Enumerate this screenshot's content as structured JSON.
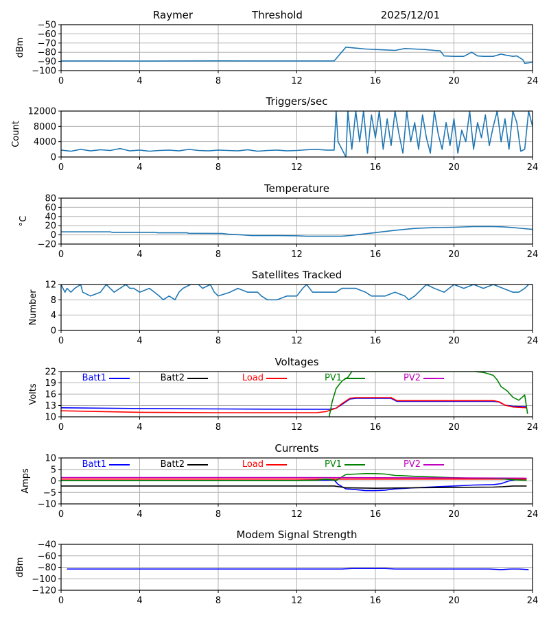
{
  "header": {
    "site": "Raymer",
    "mode": "Threshold",
    "date": "2025/12/01"
  },
  "colors": {
    "default_line": "#1f77b4",
    "batt1": "#0000ff",
    "batt2": "#000000",
    "load": "#ff0000",
    "pv1": "#008000",
    "pv2": "#bf00bf",
    "grid": "#b0b0b0"
  },
  "chart_data": [
    {
      "id": "threshold",
      "type": "line",
      "title": "",
      "xlabel": "",
      "ylabel": "dBm",
      "xlim": [
        0,
        24
      ],
      "ylim": [
        -100,
        -50
      ],
      "xticks": [
        "0",
        "4",
        "8",
        "12",
        "16",
        "20",
        "24"
      ],
      "yticks": [
        "−50",
        "−60",
        "−70",
        "−80",
        "−90",
        "−100"
      ],
      "ytick_values": [
        -50,
        -60,
        -70,
        -80,
        -90,
        -100
      ],
      "grid": true,
      "series": [
        {
          "name": "Threshold",
          "color": "#1f77b4",
          "x": [
            0,
            2,
            4,
            6,
            8,
            10,
            12,
            13.9,
            14.5,
            15,
            15.5,
            16,
            16.5,
            17,
            17.5,
            18,
            18.5,
            19,
            19.3,
            19.5,
            20,
            20.5,
            20.9,
            21.2,
            21.5,
            22,
            22.4,
            22.6,
            23,
            23.2,
            23.5,
            23.6,
            24
          ],
          "y": [
            -89.5,
            -89.5,
            -89.6,
            -89.5,
            -89.4,
            -89.5,
            -89.5,
            -89.5,
            -74.5,
            -75.5,
            -76.5,
            -77,
            -77.5,
            -78,
            -76,
            -76.5,
            -77,
            -78,
            -78.5,
            -84,
            -84.5,
            -84.5,
            -80,
            -84,
            -84.5,
            -84.5,
            -82,
            -83,
            -84.5,
            -84,
            -88,
            -92,
            -91
          ]
        }
      ]
    },
    {
      "id": "triggers",
      "type": "line",
      "title": "Triggers/sec",
      "xlabel": "",
      "ylabel": "Count",
      "xlim": [
        0,
        24
      ],
      "ylim": [
        0,
        12000
      ],
      "xticks": [
        "0",
        "4",
        "8",
        "12",
        "16",
        "20",
        "24"
      ],
      "yticks": [
        "12000",
        "8000",
        "4000",
        "0"
      ],
      "ytick_values": [
        12000,
        8000,
        4000,
        0
      ],
      "grid": true,
      "series": [
        {
          "name": "Triggers/sec",
          "color": "#1f77b4",
          "x": [
            0,
            0.5,
            1,
            1.5,
            2,
            2.5,
            3,
            3.5,
            4,
            4.5,
            5,
            5.5,
            6,
            6.5,
            7,
            7.5,
            8,
            8.5,
            9,
            9.5,
            10,
            10.5,
            11,
            11.5,
            12,
            12.5,
            13,
            13.5,
            13.9,
            14.0,
            14.1,
            14.5,
            14.6,
            14.8,
            15.0,
            15.2,
            15.4,
            15.6,
            15.8,
            16.0,
            16.2,
            16.4,
            16.6,
            16.8,
            17.0,
            17.2,
            17.4,
            17.6,
            17.8,
            18.0,
            18.2,
            18.4,
            18.6,
            18.8,
            19.0,
            19.2,
            19.4,
            19.6,
            19.8,
            20.0,
            20.2,
            20.4,
            20.6,
            20.8,
            21.0,
            21.2,
            21.4,
            21.6,
            21.8,
            22.0,
            22.2,
            22.4,
            22.6,
            22.8,
            23.0,
            23.2,
            23.4,
            23.6,
            23.8,
            24.0
          ],
          "y": [
            1800,
            1500,
            2000,
            1600,
            1900,
            1700,
            2200,
            1600,
            1800,
            1500,
            1700,
            1800,
            1600,
            2000,
            1700,
            1600,
            1800,
            1700,
            1600,
            1900,
            1500,
            1700,
            1800,
            1600,
            1700,
            1900,
            2000,
            1800,
            1800,
            12000,
            4000,
            0,
            12000,
            2000,
            12000,
            4000,
            12000,
            1000,
            11000,
            5000,
            12000,
            2000,
            10000,
            3000,
            12000,
            6000,
            1000,
            12000,
            4000,
            9000,
            2000,
            11000,
            5000,
            1000,
            12000,
            6000,
            2000,
            9000,
            3000,
            10000,
            1000,
            7000,
            4000,
            12000,
            2000,
            9000,
            5000,
            11000,
            3000,
            8000,
            12000,
            4000,
            10000,
            2000,
            12000,
            9000,
            1500,
            2000,
            12000,
            8000
          ]
        }
      ]
    },
    {
      "id": "temperature",
      "type": "line",
      "title": "Temperature",
      "xlabel": "",
      "ylabel": "°C",
      "xlim": [
        0,
        24
      ],
      "ylim": [
        -20,
        80
      ],
      "xticks": [
        "0",
        "4",
        "8",
        "12",
        "16",
        "20",
        "24"
      ],
      "yticks": [
        "80",
        "60",
        "40",
        "20",
        "0",
        "−20"
      ],
      "ytick_values": [
        80,
        60,
        40,
        20,
        0,
        -20
      ],
      "grid": true,
      "series": [
        {
          "name": "Temperature",
          "color": "#1f77b4",
          "x": [
            0,
            2.5,
            2.6,
            4.8,
            4.9,
            6.4,
            6.5,
            8.2,
            8.5,
            9.2,
            9.7,
            11,
            12,
            12.5,
            13.5,
            14.3,
            15,
            16,
            17,
            18,
            19,
            20,
            21,
            22,
            22.5,
            23,
            24
          ],
          "y": [
            6.5,
            6.5,
            5.5,
            5.5,
            4.5,
            4.5,
            3.5,
            3,
            1.5,
            0,
            -1.5,
            -1.5,
            -2,
            -3,
            -3,
            -3,
            0,
            5,
            10,
            14,
            16,
            16.5,
            18,
            18,
            17.5,
            16,
            12
          ]
        }
      ]
    },
    {
      "id": "satellites",
      "type": "line",
      "title": "Satellites Tracked",
      "xlabel": "",
      "ylabel": "Number",
      "xlim": [
        0,
        24
      ],
      "ylim": [
        0,
        12
      ],
      "xticks": [
        "0",
        "4",
        "8",
        "12",
        "16",
        "20",
        "24"
      ],
      "yticks": [
        "12",
        "8",
        "4",
        "0"
      ],
      "ytick_values": [
        12,
        8,
        4,
        0
      ],
      "grid": true,
      "series": [
        {
          "name": "Satellites",
          "color": "#1f77b4",
          "x": [
            0,
            0.2,
            0.3,
            0.5,
            0.7,
            1.0,
            1.1,
            1.5,
            2.0,
            2.3,
            2.7,
            3.0,
            3.3,
            3.5,
            3.7,
            4.0,
            4.5,
            5.0,
            5.2,
            5.5,
            5.8,
            6.0,
            6.2,
            6.6,
            7.0,
            7.2,
            7.6,
            7.8,
            8.0,
            8.6,
            9.0,
            9.5,
            10.0,
            10.2,
            10.5,
            11.0,
            11.5,
            12.0,
            12.3,
            12.5,
            12.8,
            13.5,
            14.0,
            14.3,
            15.0,
            15.5,
            15.8,
            16.5,
            17.0,
            17.5,
            17.7,
            18.0,
            18.4,
            18.6,
            19.0,
            19.5,
            20.0,
            20.5,
            21.0,
            21.5,
            22.0,
            22.5,
            23.0,
            23.3,
            23.6,
            23.8,
            24.0
          ],
          "y": [
            12,
            10,
            11,
            10,
            11,
            12,
            10,
            9,
            10,
            12,
            10,
            11,
            12,
            11,
            11,
            10,
            11,
            9,
            8,
            9,
            8,
            10,
            11,
            12,
            12,
            11,
            12,
            10,
            9,
            10,
            11,
            10,
            10,
            9,
            8,
            8,
            9,
            9,
            11,
            12,
            10,
            10,
            10,
            11,
            11,
            10,
            9,
            9,
            10,
            9,
            8,
            9,
            11,
            12,
            11,
            10,
            12,
            11,
            12,
            11,
            12,
            11,
            10,
            10,
            11,
            12,
            12
          ]
        }
      ]
    },
    {
      "id": "voltages",
      "type": "line",
      "title": "Voltages",
      "xlabel": "",
      "ylabel": "Volts",
      "xlim": [
        0,
        24
      ],
      "ylim": [
        10,
        22
      ],
      "xticks": [
        "0",
        "4",
        "8",
        "12",
        "16",
        "20",
        "24"
      ],
      "yticks": [
        "22",
        "19",
        "16",
        "13",
        "10"
      ],
      "ytick_values": [
        22,
        19,
        16,
        13,
        10
      ],
      "grid": true,
      "legend": [
        "Batt1",
        "Batt2",
        "Load",
        "PV1",
        "PV2"
      ],
      "legend_position": "top",
      "series": [
        {
          "name": "Batt1",
          "color": "#0000ff",
          "x": [
            0,
            4,
            8,
            12,
            13.7,
            14.0,
            14.3,
            14.7,
            15,
            16,
            16.8,
            17.1,
            18,
            20,
            22,
            22.3,
            22.6,
            23,
            23.7
          ],
          "y": [
            12.4,
            12.2,
            12.1,
            12.0,
            12.0,
            12.3,
            13.3,
            14.7,
            14.9,
            14.9,
            14.9,
            14.1,
            14.1,
            14.1,
            14.1,
            13.9,
            13.1,
            12.8,
            12.7
          ]
        },
        {
          "name": "Batt2",
          "color": "#000000",
          "x": [],
          "y": []
        },
        {
          "name": "Load",
          "color": "#ff0000",
          "x": [
            0,
            4,
            8,
            12,
            13.0,
            13.5,
            14.0,
            14.3,
            14.7,
            15,
            16,
            16.8,
            17.1,
            18,
            20,
            22,
            22.3,
            22.6,
            23,
            23.7
          ],
          "y": [
            11.6,
            11.2,
            11.1,
            11.1,
            11.1,
            11.4,
            12.3,
            13.5,
            14.9,
            15.1,
            15.1,
            15.1,
            14.3,
            14.3,
            14.3,
            14.3,
            14.0,
            13.1,
            12.6,
            12.4
          ]
        },
        {
          "name": "PV1",
          "color": "#008000",
          "x": [
            13.65,
            13.8,
            14.0,
            14.3,
            14.6,
            14.8,
            21.0,
            21.5,
            22.0,
            22.2,
            22.4,
            22.7,
            23.0,
            23.3,
            23.6,
            23.75
          ],
          "y": [
            10,
            14,
            17.5,
            19.5,
            20.5,
            22.0,
            22.0,
            21.8,
            21.0,
            19.8,
            18.0,
            16.9,
            15.2,
            14.4,
            15.8,
            10.8
          ]
        },
        {
          "name": "PV2",
          "color": "#bf00bf",
          "x": [],
          "y": []
        }
      ]
    },
    {
      "id": "currents",
      "type": "line",
      "title": "Currents",
      "xlabel": "",
      "ylabel": "Amps",
      "xlim": [
        0,
        24
      ],
      "ylim": [
        -10,
        10
      ],
      "xticks": [
        "0",
        "4",
        "8",
        "12",
        "16",
        "20",
        "24"
      ],
      "yticks": [
        "10",
        "5",
        "0",
        "−5",
        "−10"
      ],
      "ytick_values": [
        10,
        5,
        0,
        -5,
        -10
      ],
      "grid": true,
      "legend": [
        "Batt1",
        "Batt2",
        "Load",
        "PV1",
        "PV2"
      ],
      "legend_position": "top",
      "series": [
        {
          "name": "Batt1",
          "color": "#0000ff",
          "x": [
            0,
            4,
            8,
            12,
            13.9,
            14.1,
            14.5,
            15,
            15.5,
            16,
            16.5,
            17,
            18,
            19,
            20,
            21,
            22,
            22.4,
            22.8,
            23.2,
            23.7
          ],
          "y": [
            0.2,
            0.2,
            0.2,
            0.2,
            0.4,
            -1.5,
            -3.5,
            -3.8,
            -4.2,
            -4.2,
            -4.0,
            -3.5,
            -3.0,
            -2.6,
            -2.2,
            -1.8,
            -1.6,
            -1.2,
            0.0,
            0.6,
            0.8
          ]
        },
        {
          "name": "Batt2",
          "color": "#000000",
          "x": [
            0,
            4,
            8,
            12,
            13.9,
            14.5,
            16,
            18,
            20,
            22,
            22.5,
            23,
            23.7
          ],
          "y": [
            -2.2,
            -2.2,
            -2.2,
            -2.2,
            -2.2,
            -3.0,
            -3.2,
            -3.0,
            -2.8,
            -2.7,
            -2.5,
            -2.2,
            -2.2
          ]
        },
        {
          "name": "Load",
          "color": "#ff0000",
          "x": [
            0,
            4,
            8,
            12,
            16,
            20,
            23.7
          ],
          "y": [
            0.8,
            0.8,
            0.8,
            0.8,
            0.8,
            0.8,
            0.8
          ]
        },
        {
          "name": "PV1",
          "color": "#008000",
          "x": [
            0,
            4,
            8,
            12,
            13.0,
            13.5,
            14.0,
            14.5,
            15,
            15.5,
            16,
            16.5,
            17,
            17.5,
            18,
            19,
            20,
            21,
            22,
            22.5,
            23,
            23.7
          ],
          "y": [
            0.2,
            0.2,
            0.2,
            0.2,
            0.3,
            0.8,
            0.2,
            2.8,
            3.0,
            3.2,
            3.2,
            3.0,
            2.4,
            2.2,
            2.0,
            1.7,
            1.4,
            1.2,
            1.1,
            0.9,
            0.5,
            0.3
          ]
        },
        {
          "name": "PV2",
          "color": "#bf00bf",
          "x": [
            0,
            4,
            8,
            12,
            16,
            20,
            23.7
          ],
          "y": [
            1.5,
            1.5,
            1.5,
            1.5,
            1.4,
            1.3,
            1.2
          ]
        }
      ]
    },
    {
      "id": "modem",
      "type": "line",
      "title": "Modem Signal Strength",
      "xlabel": "",
      "ylabel": "dBm",
      "xlim": [
        0,
        24
      ],
      "ylim": [
        -120,
        -40
      ],
      "xticks": [
        "0",
        "4",
        "8",
        "12",
        "16",
        "20",
        "24"
      ],
      "yticks": [
        "−40",
        "−60",
        "−80",
        "−100",
        "−120"
      ],
      "ytick_values": [
        -40,
        -60,
        -80,
        -100,
        -120
      ],
      "grid": true,
      "series": [
        {
          "name": "Modem",
          "color": "#0000ff",
          "x": [
            0.3,
            4,
            8,
            12,
            14.3,
            14.8,
            16,
            16.5,
            17,
            18,
            20,
            21.8,
            22.4,
            22.9,
            23.3,
            23.8
          ],
          "y": [
            -83,
            -83,
            -83,
            -83,
            -83,
            -82,
            -82,
            -82,
            -83,
            -83,
            -83,
            -83,
            -84,
            -83,
            -83,
            -84
          ]
        }
      ]
    }
  ]
}
